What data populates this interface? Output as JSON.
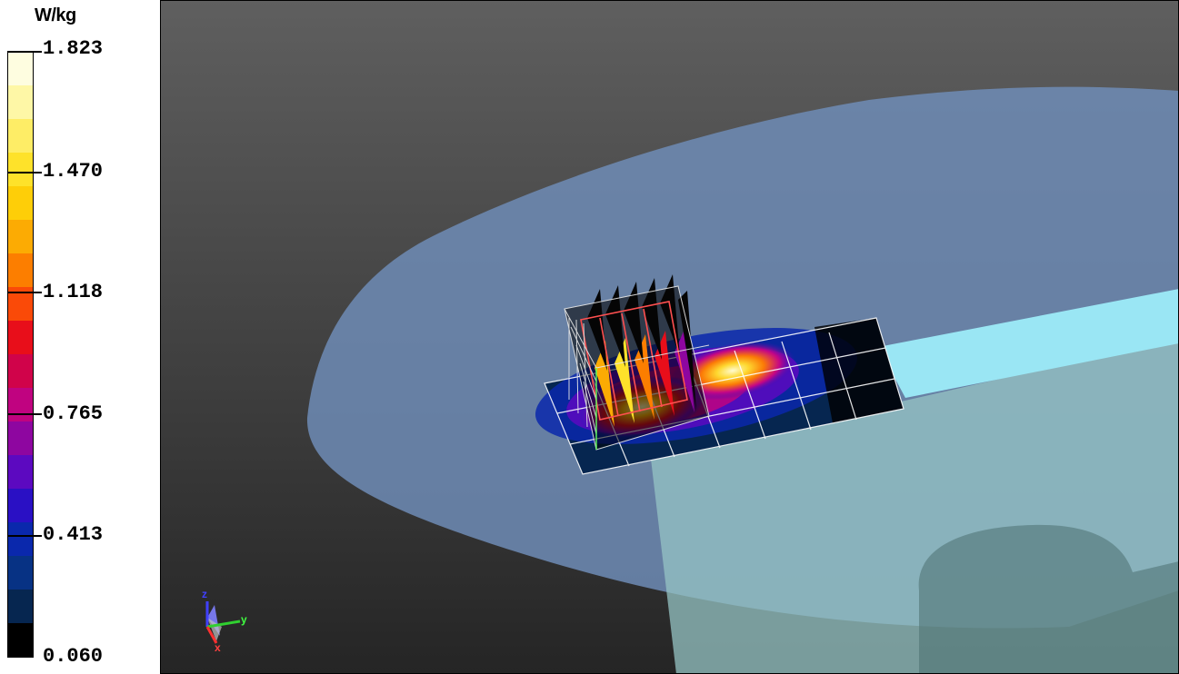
{
  "legend": {
    "unit": "W/kg",
    "ticks": [
      "1.823",
      "1.470",
      "1.118",
      "0.765",
      "0.413",
      "0.060"
    ],
    "color_bands": [
      "#fefde0",
      "#fef7a6",
      "#feed66",
      "#fee22a",
      "#fece08",
      "#fcab03",
      "#fc7e00",
      "#fa4a08",
      "#e80e1a",
      "#d0034a",
      "#c00380",
      "#8e06a0",
      "#5c09c0",
      "#2a10c4",
      "#0a28ac",
      "#073284",
      "#062650",
      "#000000"
    ]
  },
  "viewport": {
    "background_top": "#5f5f5f",
    "background_bottom": "#252525",
    "phantom_color": "#6f8cb6",
    "phantom_inner_color": "#96c4c4",
    "waveguide_color": "#9ae6f4",
    "axes": {
      "z": "z",
      "y": "y",
      "x": "x"
    }
  }
}
